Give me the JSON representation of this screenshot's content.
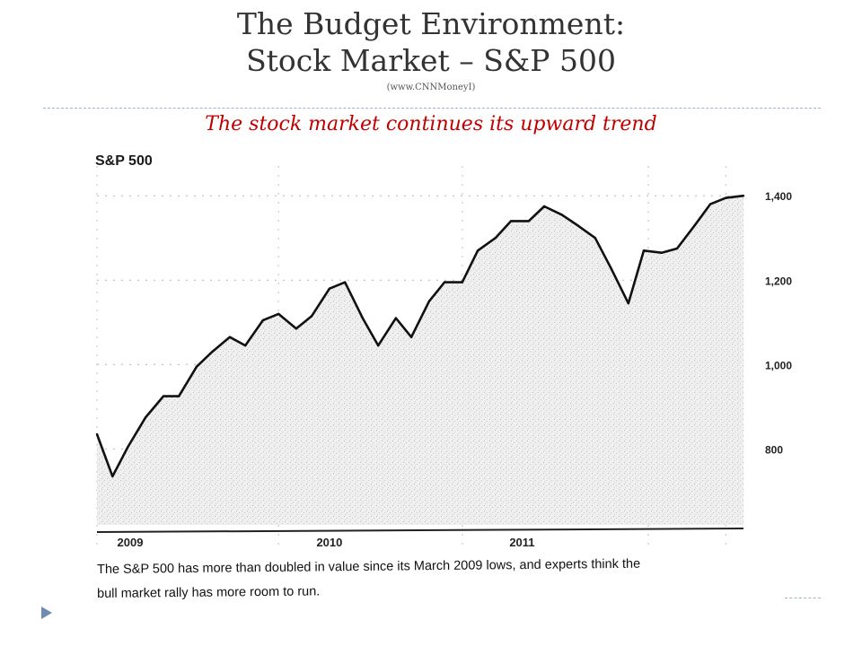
{
  "slide": {
    "title_line1": "The Budget Environment:",
    "title_line2": "Stock Market – S&P 500",
    "source": "(www.CNNMoneyI)",
    "subtitle": "The stock market continues its upward trend",
    "caption_line1": "The S&P 500 has more than doubled in value since its March 2009 lows, and experts think the",
    "caption_line2": "bull market rally has more room to run.",
    "accent_color": "#c00000",
    "bullet_icon": "triangle-arrow-icon"
  },
  "chart_data": {
    "type": "area",
    "title": "S&P 500",
    "xlabel": "",
    "ylabel": "",
    "x_ticks": [
      "2009",
      "2010",
      "2011"
    ],
    "y_ticks": [
      "800",
      "1,000",
      "1,200",
      "1,400"
    ],
    "y_tick_values": [
      800,
      1000,
      1200,
      1400
    ],
    "ylim": [
      620,
      1460
    ],
    "xlim": [
      2009.13,
      2012.05
    ],
    "grid": true,
    "axis_position": "right",
    "series": [
      {
        "x": [
          2009.13,
          2009.2,
          2009.27,
          2009.35,
          2009.43,
          2009.5,
          2009.58,
          2009.65,
          2009.73,
          2009.8,
          2009.88,
          2009.95,
          2010.03,
          2010.1,
          2010.18,
          2010.25,
          2010.33,
          2010.4,
          2010.48,
          2010.55,
          2010.63,
          2010.7,
          2010.78,
          2010.85,
          2010.93,
          2011.0,
          2011.08,
          2011.15,
          2011.23,
          2011.3,
          2011.38,
          2011.45,
          2011.53,
          2011.6,
          2011.68,
          2011.75,
          2011.83,
          2011.9,
          2011.97,
          2012.05
        ],
        "values": [
          835,
          735,
          805,
          875,
          925,
          925,
          995,
          1030,
          1065,
          1045,
          1105,
          1120,
          1085,
          1115,
          1180,
          1195,
          1110,
          1045,
          1110,
          1065,
          1150,
          1195,
          1195,
          1270,
          1300,
          1340,
          1340,
          1375,
          1355,
          1330,
          1300,
          1230,
          1145,
          1270,
          1265,
          1275,
          1330,
          1380,
          1395,
          1400
        ]
      }
    ]
  }
}
